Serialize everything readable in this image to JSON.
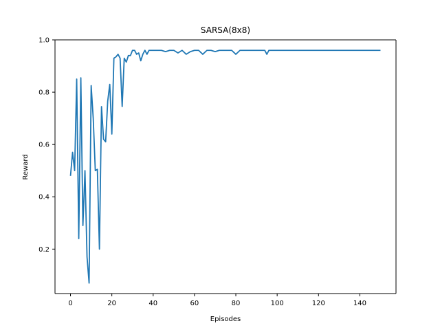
{
  "chart_data": {
    "type": "line",
    "title": "SARSA(8x8)",
    "xlabel": "Episodes",
    "ylabel": "Reward",
    "xlim": [
      -7.5,
      157.5
    ],
    "ylim": [
      0.03,
      1.0
    ],
    "xticks": [
      0,
      20,
      40,
      60,
      80,
      100,
      120,
      140
    ],
    "yticks": [
      0.2,
      0.4,
      0.6,
      0.8,
      1.0
    ],
    "xtick_labels": [
      "0",
      "20",
      "40",
      "60",
      "80",
      "100",
      "120",
      "140"
    ],
    "ytick_labels": [
      "0.2",
      "0.4",
      "0.6",
      "0.8",
      "1.0"
    ],
    "grid": false,
    "color": "#1f77b4",
    "series": [
      {
        "x": [
          0,
          1,
          2,
          3,
          4,
          5,
          6,
          7,
          8,
          9,
          10,
          11,
          12,
          13,
          14,
          15,
          16,
          17,
          18,
          19,
          20,
          21,
          22,
          23,
          24,
          25,
          26,
          27,
          28,
          29,
          30,
          31,
          32,
          33,
          34,
          35,
          36,
          37,
          38,
          39,
          40,
          42,
          44,
          46,
          48,
          50,
          52,
          54,
          56,
          58,
          60,
          62,
          64,
          66,
          68,
          70,
          72,
          74,
          76,
          78,
          80,
          82,
          84,
          86,
          88,
          90,
          92,
          93,
          94,
          95,
          96,
          98,
          100,
          110,
          120,
          130,
          140,
          150
        ],
        "y": [
          0.48,
          0.57,
          0.5,
          0.85,
          0.24,
          0.855,
          0.29,
          0.5,
          0.17,
          0.07,
          0.825,
          0.7,
          0.5,
          0.505,
          0.2,
          0.745,
          0.62,
          0.61,
          0.765,
          0.83,
          0.64,
          0.93,
          0.935,
          0.945,
          0.93,
          0.745,
          0.93,
          0.915,
          0.94,
          0.94,
          0.96,
          0.96,
          0.945,
          0.95,
          0.92,
          0.945,
          0.96,
          0.945,
          0.96,
          0.96,
          0.96,
          0.96,
          0.96,
          0.955,
          0.96,
          0.96,
          0.95,
          0.96,
          0.945,
          0.955,
          0.96,
          0.96,
          0.945,
          0.96,
          0.96,
          0.955,
          0.96,
          0.96,
          0.96,
          0.96,
          0.945,
          0.96,
          0.96,
          0.96,
          0.96,
          0.96,
          0.96,
          0.96,
          0.96,
          0.945,
          0.96,
          0.96,
          0.96,
          0.96,
          0.96,
          0.96,
          0.96,
          0.96
        ]
      }
    ]
  }
}
